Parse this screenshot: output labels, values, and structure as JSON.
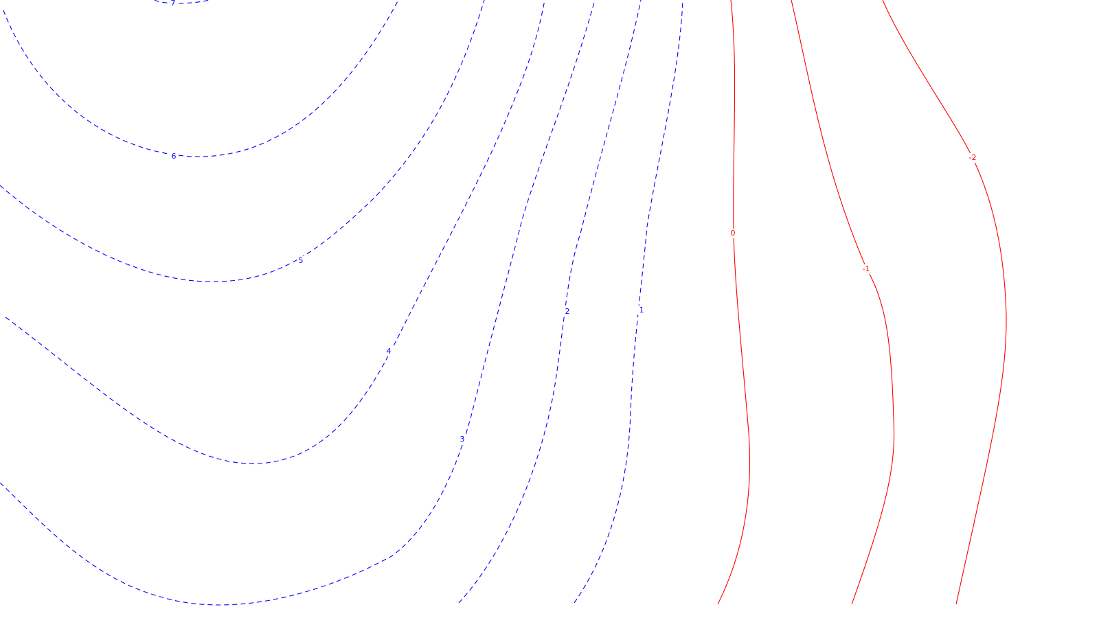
{
  "chart_data": {
    "type": "contour",
    "colors": {
      "positive": "#0000ff",
      "negative": "#ff0000",
      "background": "#ffffff"
    },
    "line_styles": {
      "positive": "dashed",
      "nonpositive": "solid"
    },
    "levels": [
      {
        "level": 7,
        "label": "7",
        "color": "#0000ff"
      },
      {
        "level": 6,
        "label": "6",
        "color": "#0000ff"
      },
      {
        "level": 5,
        "label": "5",
        "color": "#0000ff"
      },
      {
        "level": 4,
        "label": "4",
        "color": "#0000ff"
      },
      {
        "level": 3,
        "label": "3",
        "color": "#0000ff"
      },
      {
        "level": 2,
        "label": "2",
        "color": "#0000ff"
      },
      {
        "level": 1,
        "label": "1",
        "color": "#0000ff"
      },
      {
        "level": 0,
        "label": "0",
        "color": "#ff0000"
      },
      {
        "level": -1,
        "label": "-1",
        "color": "#ff0000"
      },
      {
        "level": -2,
        "label": "-2",
        "color": "#ff0000"
      }
    ]
  }
}
